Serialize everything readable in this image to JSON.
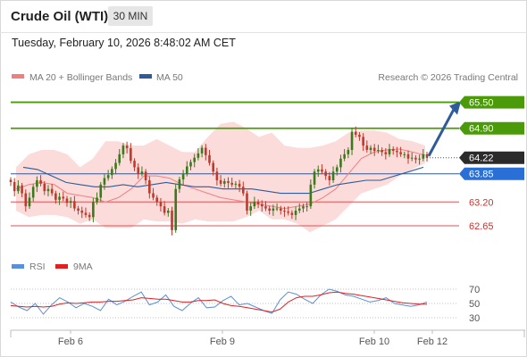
{
  "header": {
    "title": "Crude Oil (WTI)",
    "timeframe": "30 MIN"
  },
  "timestamp": "Tuesday, February 10, 2026 8:48:02 AM CET",
  "legend": {
    "bollinger_label": "MA 20 + Bollinger Bands",
    "ma50_label": "MA 50",
    "copyright": "Research © 2026 Trading Central",
    "rsi_label": "RSI",
    "rsi_ma_label": "9MA"
  },
  "colors": {
    "resistance": "#4a9a0a",
    "support": "#e05252",
    "ma50": "#2e5b9a",
    "ma50_tag": "#2a6fd6",
    "bollinger_fill": "#fbd5d5",
    "ma20": "#f08080",
    "last_tag": "#2b2b2b",
    "arrow": "#2e5b9a",
    "candle_up": "#3a7a1a",
    "candle_down": "#c0392b",
    "rsi": "#5b8fd9",
    "rsi_ma": "#e02020"
  },
  "chart_data": [
    {
      "type": "candlestick",
      "title": "Crude Oil (WTI)",
      "timeframe": "30 MIN",
      "x_ticks": [
        "Feb 6",
        "Feb 9",
        "Feb 10",
        "Feb 12"
      ],
      "ylim": [
        62.3,
        65.8
      ],
      "price_levels": [
        {
          "value": 65.5,
          "label": "65.50",
          "kind": "resistance"
        },
        {
          "value": 64.9,
          "label": "64.90",
          "kind": "resistance"
        },
        {
          "value": 64.22,
          "label": "64.22",
          "kind": "last"
        },
        {
          "value": 63.85,
          "label": "63.85",
          "kind": "ma50"
        },
        {
          "value": 63.2,
          "label": "63.20",
          "kind": "support"
        },
        {
          "value": 62.65,
          "label": "62.65",
          "kind": "support"
        }
      ],
      "close": [
        63.66,
        63.45,
        63.58,
        63.4,
        63.1,
        63.3,
        63.55,
        63.7,
        63.62,
        63.45,
        63.5,
        63.4,
        63.25,
        63.32,
        63.28,
        63.18,
        63.22,
        63.05,
        63.0,
        62.95,
        62.9,
        62.85,
        63.2,
        63.3,
        63.6,
        63.75,
        63.82,
        63.96,
        64.1,
        64.3,
        64.5,
        64.44,
        64.15,
        64.0,
        63.85,
        63.9,
        63.7,
        63.4,
        63.3,
        63.2,
        63.1,
        62.95,
        63.0,
        62.55,
        63.5,
        63.72,
        63.85,
        64.02,
        64.12,
        64.22,
        64.32,
        64.45,
        64.28,
        64.1,
        63.9,
        63.7,
        63.62,
        63.68,
        63.64,
        63.6,
        63.62,
        63.55,
        63.4,
        63.0,
        63.1,
        63.2,
        63.15,
        63.1,
        63.05,
        63.0,
        63.05,
        63.05,
        63.0,
        62.98,
        62.95,
        62.9,
        63.0,
        63.05,
        63.1,
        63.1,
        63.6,
        63.9,
        63.95,
        63.9,
        63.8,
        63.7,
        63.9,
        64.0,
        64.2,
        64.3,
        64.4,
        64.82,
        64.75,
        64.7,
        64.5,
        64.4,
        64.45,
        64.38,
        64.4,
        64.35,
        64.3,
        64.42,
        64.38,
        64.35,
        64.3,
        64.3,
        64.2,
        64.22,
        64.18,
        64.2,
        64.3,
        64.22
      ],
      "bollinger_upper": [
        64.0,
        64.3,
        64.4,
        64.4,
        64.3,
        64.0,
        64.2,
        64.6,
        64.6,
        64.5,
        64.5,
        64.65,
        64.5,
        64.35,
        64.35,
        64.7,
        65.0,
        65.05,
        64.9,
        64.7,
        64.8,
        64.5,
        64.45,
        64.45,
        64.5,
        64.6,
        64.8,
        64.85,
        64.85,
        64.8,
        64.65,
        64.6,
        64.5
      ],
      "bollinger_lower": [
        63.0,
        62.85,
        62.9,
        62.9,
        62.85,
        62.7,
        62.8,
        62.6,
        62.6,
        62.6,
        62.8,
        62.75,
        62.75,
        62.7,
        62.8,
        62.75,
        62.75,
        62.75,
        62.85,
        63.0,
        62.8,
        62.8,
        62.7,
        62.5,
        62.65,
        62.8,
        63.1,
        63.4,
        63.5,
        63.6,
        63.8,
        63.95,
        64.1
      ],
      "ma20": [
        63.5,
        63.6,
        63.65,
        63.6,
        63.4,
        63.35,
        63.3,
        63.2,
        63.3,
        63.5,
        63.8,
        63.8,
        63.75,
        63.6,
        63.5,
        63.4,
        63.3,
        63.25,
        63.2,
        63.15,
        63.1,
        63.05,
        63.1,
        63.15,
        63.3,
        63.5,
        63.85,
        64.2,
        64.35,
        64.4,
        64.42,
        64.35,
        64.28
      ],
      "ma50": [
        64.0,
        63.95,
        63.8,
        63.65,
        63.6,
        63.55,
        63.55,
        63.6,
        63.55,
        63.6,
        63.65,
        63.6,
        63.55,
        63.55,
        63.5,
        63.5,
        63.5,
        63.45,
        63.4,
        63.4,
        63.4,
        63.5,
        63.6,
        63.65,
        63.7,
        63.7,
        63.8,
        63.9,
        64.0
      ],
      "forecast": {
        "from": 64.22,
        "to": 65.5
      }
    },
    {
      "type": "line",
      "title": "RSI",
      "ylim": [
        20,
        80
      ],
      "y_ticks": [
        70,
        50,
        30
      ],
      "series": [
        {
          "name": "RSI",
          "values": [
            52,
            45,
            40,
            50,
            35,
            48,
            58,
            52,
            44,
            50,
            46,
            40,
            56,
            48,
            53,
            60,
            66,
            48,
            52,
            62,
            46,
            40,
            50,
            58,
            44,
            45,
            54,
            60,
            48,
            50,
            45,
            40,
            36,
            55,
            66,
            63,
            56,
            50,
            62,
            70,
            67,
            62,
            60,
            56,
            52,
            54,
            58,
            50,
            48,
            46,
            48,
            52
          ]
        },
        {
          "name": "9MA",
          "values": [
            47,
            46,
            45,
            46,
            45,
            46,
            49,
            51,
            50,
            51,
            52,
            52,
            53,
            53,
            54,
            55,
            58,
            57,
            56,
            56,
            54,
            52,
            52,
            54,
            54,
            55,
            50,
            47,
            46,
            44,
            42,
            40,
            38,
            42,
            52,
            58,
            60,
            60,
            62,
            65,
            66,
            64,
            63,
            61,
            59,
            57,
            55,
            53,
            51,
            50,
            49,
            49
          ]
        }
      ]
    }
  ]
}
